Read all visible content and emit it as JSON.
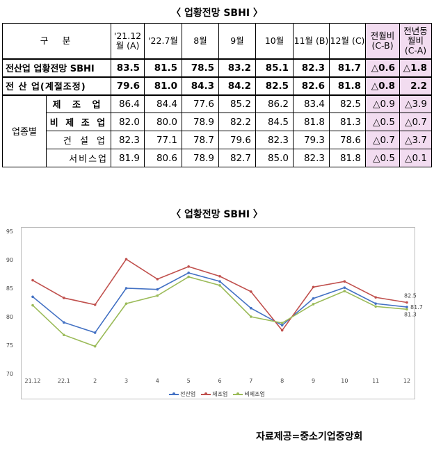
{
  "table_title": "〈 업황전망 SBHI 〉",
  "chart_title": "〈 업황전망 SBHI 〉",
  "source": "자료제공=중소기업중앙회",
  "table": {
    "header": {
      "category": "구　분",
      "cols": [
        "'21.12 월 (A)",
        "'22.7월",
        "8월",
        "9월",
        "10월",
        "11월 (B)",
        "12월 (C)",
        "전월비 (C-B)",
        "전년동월비 (C-A)"
      ]
    },
    "rows": [
      {
        "label": "전산업 업황전망 SBHI",
        "values": [
          "83.5",
          "81.5",
          "78.5",
          "83.2",
          "85.1",
          "82.3",
          "81.7",
          "△0.6",
          "△1.8"
        ]
      },
      {
        "label": "전 산 업(계절조정)",
        "values": [
          "79.6",
          "81.0",
          "84.3",
          "84.2",
          "82.5",
          "82.6",
          "81.8",
          "△0.8",
          "2.2"
        ]
      },
      {
        "group": "업종별",
        "label": "제 조 업",
        "values": [
          "86.4",
          "84.4",
          "77.6",
          "85.2",
          "86.2",
          "83.4",
          "82.5",
          "△0.9",
          "△3.9"
        ]
      },
      {
        "label": "비 제 조 업",
        "values": [
          "82.0",
          "80.0",
          "78.9",
          "82.2",
          "84.5",
          "81.8",
          "81.3",
          "△0.5",
          "△0.7"
        ]
      },
      {
        "label": "건 설 업",
        "values": [
          "82.3",
          "77.1",
          "78.7",
          "79.6",
          "82.3",
          "79.3",
          "78.6",
          "△0.7",
          "△3.7"
        ]
      },
      {
        "label": "서비스업",
        "values": [
          "81.9",
          "80.6",
          "78.9",
          "82.7",
          "85.0",
          "82.3",
          "81.8",
          "△0.5",
          "△0.1"
        ]
      }
    ]
  },
  "chart_data": {
    "type": "line",
    "title": "〈 업황전망 SBHI 〉",
    "x": [
      "21.12",
      "22.1",
      "2",
      "3",
      "4",
      "5",
      "6",
      "7",
      "8",
      "9",
      "10",
      "11",
      "12"
    ],
    "ylim": [
      70,
      95
    ],
    "yticks": [
      70,
      75,
      80,
      85,
      90,
      95
    ],
    "grid": false,
    "legend": "bottom",
    "series": [
      {
        "name": "전산업",
        "color": "#4472c4",
        "values": [
          83.5,
          79.0,
          77.2,
          85.0,
          84.8,
          87.7,
          86.2,
          81.5,
          78.5,
          83.2,
          85.1,
          82.3,
          81.7
        ]
      },
      {
        "name": "제조업",
        "color": "#c0504d",
        "values": [
          86.4,
          83.3,
          82.1,
          90.1,
          86.6,
          88.8,
          87.1,
          84.4,
          77.6,
          85.2,
          86.2,
          83.4,
          82.5
        ]
      },
      {
        "name": "비제조업",
        "color": "#9bbb59",
        "values": [
          82.0,
          76.8,
          74.8,
          82.3,
          83.7,
          87.0,
          85.5,
          80.0,
          78.9,
          82.2,
          84.5,
          81.8,
          81.3
        ]
      }
    ],
    "annotations": [
      {
        "series": "제조업",
        "text": "82.5"
      },
      {
        "series": "전산업",
        "text": "81.7"
      },
      {
        "series": "비제조업",
        "text": "81.3"
      }
    ]
  }
}
